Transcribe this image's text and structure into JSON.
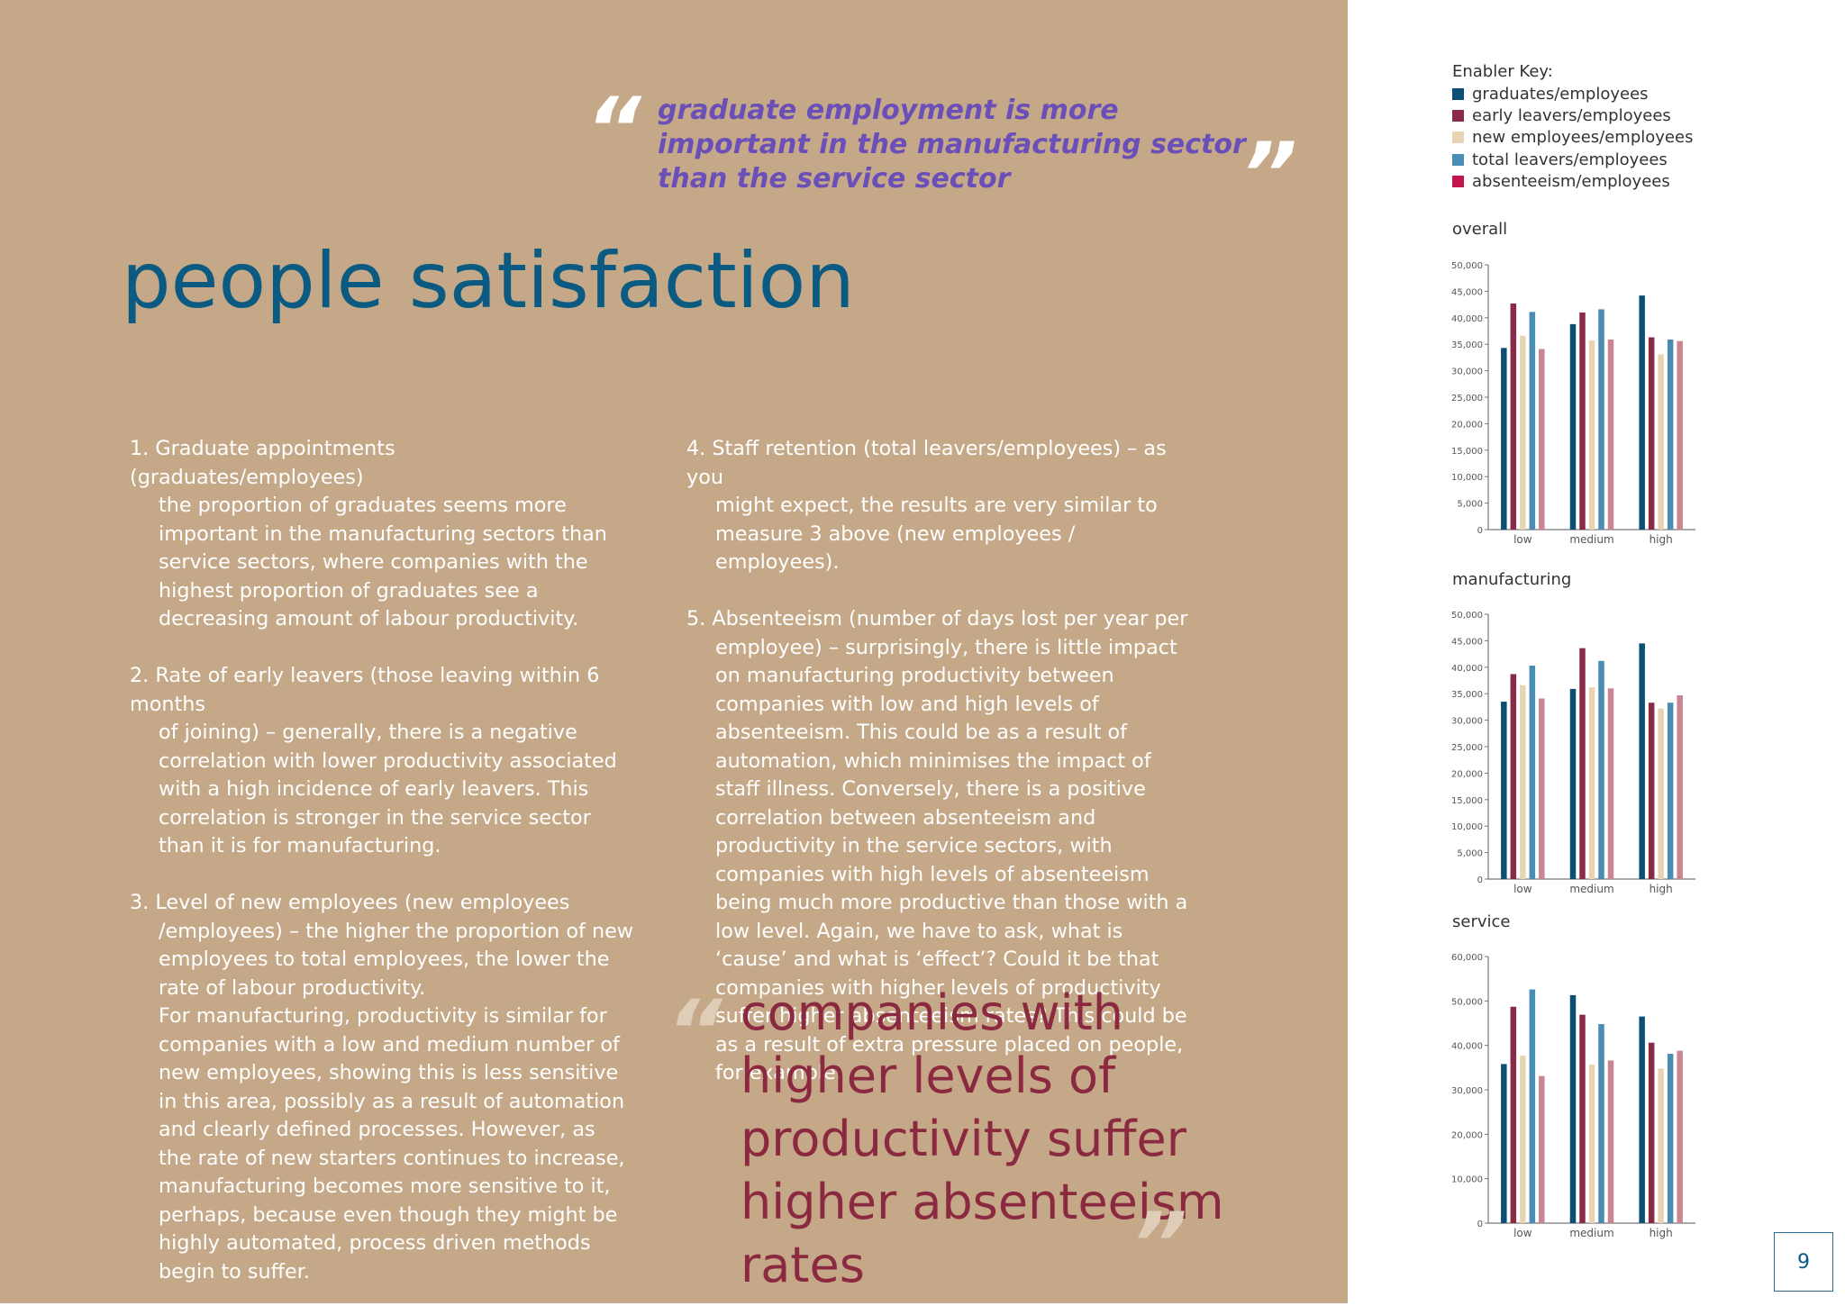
{
  "top_quote": {
    "text": "graduate employment is more important in the manufacturing sector than the service sector",
    "open_mark": "“",
    "close_mark": "”"
  },
  "title": "people satisfaction",
  "column_1": [
    {
      "head": "1.  Graduate appointments (graduates/employees)",
      "body": "the proportion of graduates seems more important in the manufacturing sectors than service sectors, where companies with the highest proportion of graduates see a decreasing amount of labour productivity."
    },
    {
      "head": "2.  Rate of early leavers (those leaving within 6 months",
      "body": "of joining) – generally, there is a negative correlation with lower productivity associated with a high incidence of early leavers. This correlation is stronger in the service sector than it is for manufacturing."
    },
    {
      "head": "3.  Level of new employees (new employees",
      "body": "/employees) – the higher the proportion of new employees to total employees, the lower the rate of labour productivity.",
      "extra": "For manufacturing, productivity is similar for companies with a low and medium number of new employees, showing this is less sensitive in this area, possibly as a result of automation and clearly defined processes. However, as the rate of new starters continues to increase, manufacturing becomes more sensitive to it, perhaps, because even though they might be highly automated, process driven methods begin to suffer."
    }
  ],
  "column_2": [
    {
      "head": "4.  Staff retention (total leavers/employees) – as you",
      "body": "might expect, the results are very similar to measure 3 above (new employees / employees)."
    },
    {
      "head": "5.  Absenteeism (number of days lost per year per",
      "body": "employee) – surprisingly, there is little impact on manufacturing productivity between companies with low and high levels of absenteeism. This could be as a result of automation, which minimises the impact of staff illness. Conversely, there is a positive correlation between absenteeism and productivity in the service sectors, with companies with high levels of absenteeism being much more productive than those with a low level.  Again, we have to ask, what is ‘cause’ and what is ‘effect’?  Could it be that companies with higher levels of productivity suffer higher absenteeism rates?  This could be as a result of extra pressure placed on people, for example."
    }
  ],
  "bottom_quote": {
    "text": "companies with higher levels of productivity suffer higher absenteeism rates",
    "open_mark": "“",
    "close_mark": "”"
  },
  "enabler_key": {
    "title": "Enabler Key:",
    "items": [
      {
        "label": "graduates/employees",
        "color": "#0d4f74"
      },
      {
        "label": "early leavers/employees",
        "color": "#8a2a48"
      },
      {
        "label": "new employees/employees",
        "color": "#e8d4b4"
      },
      {
        "label": "total leavers/employees",
        "color": "#4a8cb4"
      },
      {
        "label": "absenteeism/employees",
        "color": "#c4144c"
      }
    ]
  },
  "chart_data": [
    {
      "type": "bar",
      "title": "overall",
      "categories": [
        "low",
        "medium",
        "high"
      ],
      "ylim": [
        0,
        50000
      ],
      "yticks": [
        "0",
        "5,000",
        "10,000",
        "15,000",
        "20,000",
        "25,000",
        "30,000",
        "35,000",
        "40,000",
        "45,000",
        "50,000"
      ],
      "series": [
        {
          "name": "graduates/employees",
          "values": [
            34300,
            38800,
            44200
          ],
          "color": "#0d4f74"
        },
        {
          "name": "early leavers/employees",
          "values": [
            42700,
            41000,
            36300
          ],
          "color": "#8a2a48"
        },
        {
          "name": "new employees/employees",
          "values": [
            36600,
            35700,
            33100
          ],
          "color": "#e8d4b4"
        },
        {
          "name": "total leavers/employees",
          "values": [
            41100,
            41600,
            35900
          ],
          "color": "#4a8cb4"
        },
        {
          "name": "absenteeism/employees",
          "values": [
            34100,
            35900,
            35600
          ],
          "color": "#c98592"
        }
      ]
    },
    {
      "type": "bar",
      "title": "manufacturing",
      "categories": [
        "low",
        "medium",
        "high"
      ],
      "ylim": [
        0,
        50000
      ],
      "yticks": [
        "0",
        "5,000",
        "10,000",
        "15,000",
        "20,000",
        "25,000",
        "30,000",
        "35,000",
        "40,000",
        "45,000",
        "50,000"
      ],
      "series": [
        {
          "name": "graduates/employees",
          "values": [
            33500,
            35900,
            44500
          ],
          "color": "#0d4f74"
        },
        {
          "name": "early leavers/employees",
          "values": [
            38700,
            43600,
            33300
          ],
          "color": "#8a2a48"
        },
        {
          "name": "new employees/employees",
          "values": [
            36600,
            36200,
            32200
          ],
          "color": "#e8d4b4"
        },
        {
          "name": "total leavers/employees",
          "values": [
            40300,
            41200,
            33300
          ],
          "color": "#4a8cb4"
        },
        {
          "name": "absenteeism/employees",
          "values": [
            34100,
            36000,
            34700
          ],
          "color": "#c98592"
        }
      ]
    },
    {
      "type": "bar",
      "title": "service",
      "categories": [
        "low",
        "medium",
        "high"
      ],
      "ylim": [
        0,
        60000
      ],
      "yticks": [
        "0",
        "10,000",
        "20,000",
        "30,000",
        "40,000",
        "50,000",
        "60,000"
      ],
      "series": [
        {
          "name": "graduates/employees",
          "values": [
            35800,
            51300,
            46500
          ],
          "color": "#0d4f74"
        },
        {
          "name": "early leavers/employees",
          "values": [
            48700,
            46900,
            40600
          ],
          "color": "#8a2a48"
        },
        {
          "name": "new employees/employees",
          "values": [
            37700,
            35700,
            34800
          ],
          "color": "#e8d4b4"
        },
        {
          "name": "total leavers/employees",
          "values": [
            52600,
            44800,
            38100
          ],
          "color": "#4a8cb4"
        },
        {
          "name": "absenteeism/employees",
          "values": [
            33100,
            36600,
            38800
          ],
          "color": "#c98592"
        }
      ]
    }
  ],
  "page_number": "9"
}
